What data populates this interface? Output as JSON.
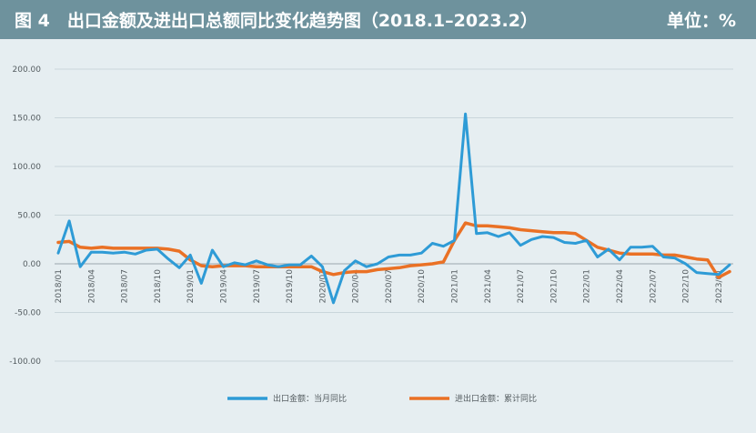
{
  "header": {
    "title": "图 4　出口金额及进出口总额同比变化趋势图（2018.1–2023.2）",
    "unit": "单位：%"
  },
  "chart_data": {
    "type": "line",
    "title": "图 4　出口金额及进出口总额同比变化趋势图（2018.1–2023.2）",
    "unit": "%",
    "ylim": [
      -100,
      200
    ],
    "yticks": [
      -100,
      -50,
      0,
      50,
      100,
      150,
      200
    ],
    "ytick_labels": [
      "-100.00",
      "-50.00",
      "0.00",
      "50.00",
      "100.00",
      "150.00",
      "200.00"
    ],
    "grid": "horizontal",
    "legend_position": "bottom",
    "x": [
      "2018/01",
      "2018/02",
      "2018/03",
      "2018/04",
      "2018/05",
      "2018/06",
      "2018/07",
      "2018/08",
      "2018/09",
      "2018/10",
      "2018/11",
      "2018/12",
      "2019/01",
      "2019/02",
      "2019/03",
      "2019/04",
      "2019/05",
      "2019/06",
      "2019/07",
      "2019/08",
      "2019/09",
      "2019/10",
      "2019/11",
      "2019/12",
      "2020/01",
      "2020/02",
      "2020/03",
      "2020/04",
      "2020/05",
      "2020/06",
      "2020/07",
      "2020/08",
      "2020/09",
      "2020/10",
      "2020/11",
      "2020/12",
      "2021/01",
      "2021/02",
      "2021/03",
      "2021/04",
      "2021/05",
      "2021/06",
      "2021/07",
      "2021/08",
      "2021/09",
      "2021/10",
      "2021/11",
      "2021/12",
      "2022/01",
      "2022/02",
      "2022/03",
      "2022/04",
      "2022/05",
      "2022/06",
      "2022/07",
      "2022/08",
      "2022/09",
      "2022/10",
      "2022/11",
      "2022/12",
      "2023/01",
      "2023/02"
    ],
    "xtick_labels": [
      {
        "index": 0,
        "label": "2018/01"
      },
      {
        "index": 3,
        "label": "2018/04"
      },
      {
        "index": 6,
        "label": "2018/07"
      },
      {
        "index": 9,
        "label": "2018/10"
      },
      {
        "index": 12,
        "label": "2019/01"
      },
      {
        "index": 15,
        "label": "2019/04"
      },
      {
        "index": 18,
        "label": "2019/07"
      },
      {
        "index": 21,
        "label": "2019/10"
      },
      {
        "index": 24,
        "label": "2020/01"
      },
      {
        "index": 27,
        "label": "2020/04"
      },
      {
        "index": 30,
        "label": "2020/07"
      },
      {
        "index": 33,
        "label": "2020/10"
      },
      {
        "index": 36,
        "label": "2021/01"
      },
      {
        "index": 39,
        "label": "2021/04"
      },
      {
        "index": 42,
        "label": "2021/07"
      },
      {
        "index": 45,
        "label": "2021/10"
      },
      {
        "index": 48,
        "label": "2022/01"
      },
      {
        "index": 51,
        "label": "2022/04"
      },
      {
        "index": 54,
        "label": "2022/07"
      },
      {
        "index": 57,
        "label": "2022/10"
      },
      {
        "index": 60,
        "label": "2023/01"
      }
    ],
    "series": [
      {
        "name": "出口金额：当月同比",
        "color": "#2e9bd6",
        "values": [
          11,
          44,
          -3,
          12,
          12,
          11,
          12,
          10,
          14,
          15,
          5,
          -4,
          9,
          -20,
          14,
          -3,
          1,
          -1,
          3,
          -1,
          -3,
          -1,
          -1,
          8,
          -3,
          -40,
          -7,
          3,
          -3,
          0,
          7,
          9,
          9,
          11,
          21,
          18,
          24,
          154,
          31,
          32,
          28,
          32,
          19,
          25,
          28,
          27,
          22,
          21,
          24,
          7,
          15,
          4,
          17,
          17,
          18,
          7,
          6,
          0,
          -9,
          -10,
          -11,
          -1
        ]
      },
      {
        "name": "进出口金额：累计同比",
        "color": "#ea7125",
        "values": [
          22,
          23,
          17,
          16,
          17,
          16,
          16,
          16,
          16,
          16,
          15,
          13,
          4,
          -2,
          -3,
          -2,
          -2,
          -2,
          -3,
          -3,
          -3,
          -3,
          -3,
          -3,
          -8,
          -11,
          -9,
          -8,
          -8,
          -6,
          -5,
          -4,
          -2,
          -1,
          0,
          2,
          24,
          42,
          39,
          39,
          38,
          37,
          35,
          34,
          33,
          32,
          32,
          31,
          24,
          17,
          14,
          11,
          10,
          10,
          10,
          9,
          9,
          7,
          5,
          4,
          -14,
          -8
        ]
      }
    ]
  }
}
